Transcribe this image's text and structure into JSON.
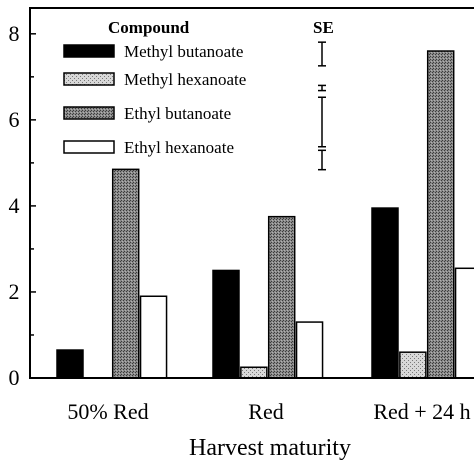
{
  "chart_data": {
    "type": "bar",
    "xlabel": "Harvest maturity",
    "ylabel": "",
    "ylim": [
      0,
      8.6
    ],
    "yticks": [
      0,
      2,
      4,
      6,
      8
    ],
    "categories": [
      "50% Red",
      "Red",
      "Red + 24 h"
    ],
    "series": [
      {
        "name": "Methyl butanoate",
        "values": [
          0.65,
          2.5,
          3.95
        ]
      },
      {
        "name": "Methyl hexanoate",
        "values": [
          0.0,
          0.25,
          0.6
        ]
      },
      {
        "name": "Ethyl butanoate",
        "values": [
          4.85,
          3.75,
          7.6
        ]
      },
      {
        "name": "Ethyl hexanoate",
        "values": [
          1.9,
          1.3,
          2.55
        ]
      }
    ],
    "legend": {
      "title": "Compound",
      "position": "top-left"
    },
    "se": {
      "title": "SE",
      "bars": [
        {
          "series": "Methyl butanoate",
          "value": 0.55
        },
        {
          "series": "Methyl hexanoate",
          "value": 0.12
        },
        {
          "series": "Ethyl butanoate",
          "value": 1.15
        },
        {
          "series": "Ethyl hexanoate",
          "value": 0.45
        }
      ]
    },
    "colors": {
      "Methyl butanoate": "#000000",
      "Methyl hexanoate": "#b8b8b8",
      "Ethyl butanoate": "#7a7a7a",
      "Ethyl hexanoate": "#ffffff"
    },
    "grid": false
  }
}
